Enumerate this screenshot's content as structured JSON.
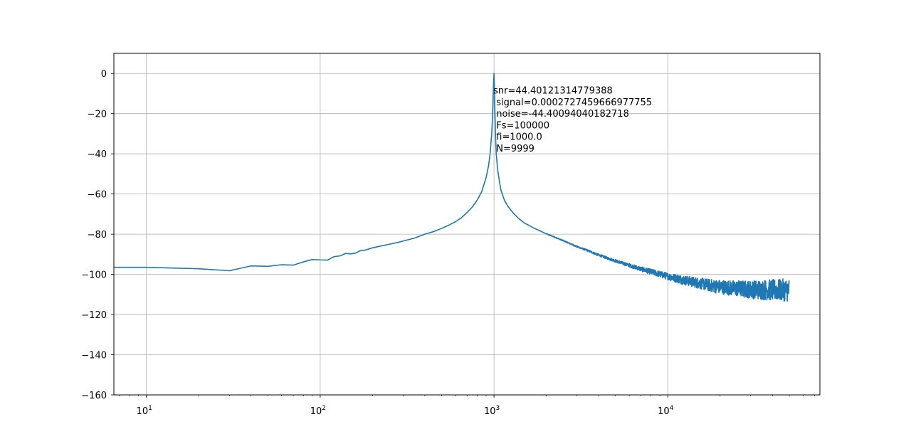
{
  "chart_data": {
    "type": "line",
    "title": "",
    "xlabel": "",
    "ylabel": "",
    "x_scale": "log",
    "xlim": [
      6.5,
      75000
    ],
    "ylim": [
      -160,
      10
    ],
    "grid": true,
    "line_color": "#1f77b4",
    "x_ticks": [
      {
        "base": "10",
        "exp": "1"
      },
      {
        "base": "10",
        "exp": "2"
      },
      {
        "base": "10",
        "exp": "3"
      },
      {
        "base": "10",
        "exp": "4"
      }
    ],
    "y_ticks": [
      "0",
      "−20",
      "−40",
      "−60",
      "−80",
      "−100",
      "−120",
      "−140",
      "−160"
    ],
    "annotation": [
      "snr=44.40121314779388",
      " signal=0.0002727459666977755",
      " noise=-44.40094040182718",
      " Fs=100000",
      " fi=1000.0",
      " N=9999"
    ],
    "series": [
      {
        "x": [
          6.5,
          10,
          20,
          30,
          40,
          50,
          60,
          70,
          80,
          90,
          100,
          110,
          120,
          130,
          140,
          150,
          160,
          170,
          180,
          200,
          220,
          250,
          280,
          300,
          350,
          400,
          450,
          500,
          550,
          600,
          650,
          700,
          750,
          800,
          850,
          900,
          930,
          950,
          970,
          980,
          990,
          995,
          1000,
          1005,
          1010,
          1020,
          1030,
          1050,
          1080,
          1100,
          1150,
          1200,
          1300,
          1400,
          1500,
          1700,
          2000,
          2500,
          3000,
          3500,
          4000,
          5000,
          6000,
          7000,
          8000,
          10000,
          12000,
          15000,
          18000,
          20000,
          25000,
          30000,
          35000,
          40000,
          45000,
          50000
        ],
        "y": [
          -96.5,
          -96.5,
          -97.2,
          -98.2,
          -95.8,
          -96.0,
          -95.2,
          -95.4,
          -93.8,
          -92.6,
          -92.8,
          -92.9,
          -91.2,
          -90.8,
          -89.6,
          -89.8,
          -89.4,
          -88.2,
          -88.0,
          -86.8,
          -86.0,
          -85.0,
          -84.1,
          -83.4,
          -81.9,
          -80.0,
          -78.7,
          -77.1,
          -75.5,
          -73.8,
          -71.8,
          -69.2,
          -66.5,
          -63.1,
          -58.8,
          -52.0,
          -46.0,
          -40.0,
          -30.0,
          -22.0,
          -10.0,
          -4.0,
          0.0,
          -6.0,
          -16.0,
          -30.0,
          -40.0,
          -48.0,
          -55.0,
          -58.5,
          -63.3,
          -66.0,
          -69.8,
          -72.5,
          -74.5,
          -77.0,
          -79.8,
          -83.2,
          -86.2,
          -88.3,
          -90.4,
          -93.3,
          -95.5,
          -97.3,
          -98.7,
          -101.0,
          -102.6,
          -104.3,
          -105.7,
          -106.2,
          -107.0,
          -107.5,
          -107.7,
          -107.8,
          -107.8,
          -107.8
        ],
        "noise_amp": [
          0,
          0,
          0,
          0,
          0,
          0,
          0,
          0,
          0,
          0,
          0,
          0,
          0,
          0,
          0,
          0,
          0,
          0,
          0,
          0,
          0,
          0,
          0,
          0,
          0,
          0,
          0,
          0,
          0,
          0,
          0,
          0,
          0,
          0,
          0,
          0,
          0,
          0,
          0,
          0,
          0,
          0,
          0,
          0,
          0,
          0,
          0,
          0,
          0,
          0,
          0,
          0,
          0,
          0,
          0,
          0,
          0.3,
          0.5,
          0.7,
          0.9,
          1.1,
          1.4,
          1.8,
          2.3,
          2.8,
          3.5,
          4.5,
          5.5,
          6.5,
          7.0,
          8.0,
          9.0,
          10.0,
          10.5,
          11.0,
          11.5
        ]
      }
    ]
  }
}
